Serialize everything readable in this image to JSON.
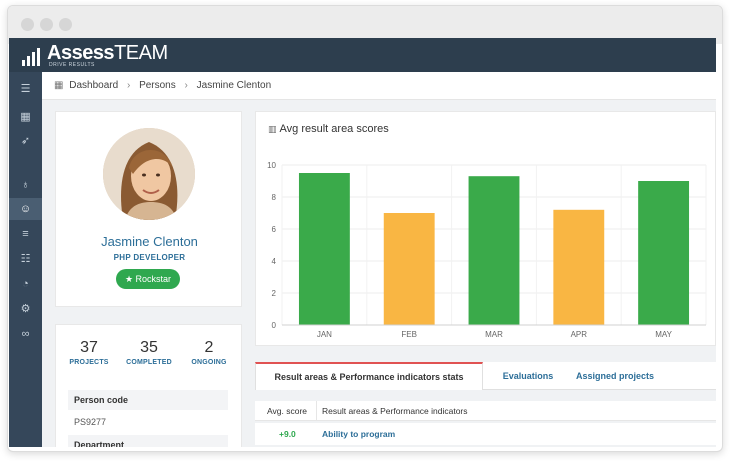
{
  "app": {
    "logo_main": "Assess",
    "logo_accent": "TEAM",
    "logo_tagline": "DRIVE RESULTS"
  },
  "breadcrumb": {
    "items": [
      "Dashboard",
      "Persons",
      "Jasmine Clenton"
    ]
  },
  "profile": {
    "name": "Jasmine Clenton",
    "role": "PHP DEVELOPER",
    "badge": "Rockstar"
  },
  "stats": [
    {
      "value": "37",
      "label": "PROJECTS"
    },
    {
      "value": "35",
      "label": "COMPLETED"
    },
    {
      "value": "2",
      "label": "ONGOING"
    }
  ],
  "details": [
    {
      "label": "Person code",
      "value": "PS9277"
    },
    {
      "label": "Department",
      "value": ""
    }
  ],
  "chart_data": {
    "type": "bar",
    "title": "Avg result area scores",
    "categories": [
      "JAN",
      "FEB",
      "MAR",
      "APR",
      "MAY"
    ],
    "values": [
      9.5,
      7.0,
      9.3,
      7.2,
      9.0
    ],
    "colors": [
      "#3aaa4a",
      "#f9b643",
      "#3aaa4a",
      "#f9b643",
      "#3aaa4a"
    ],
    "ylim": [
      0,
      10
    ],
    "yticks": [
      0,
      2,
      4,
      6,
      8,
      10
    ],
    "grid": true,
    "xlabel": "",
    "ylabel": ""
  },
  "tabs": [
    {
      "label": "Result areas & Performance indicators stats",
      "active": true
    },
    {
      "label": "Evaluations",
      "active": false
    },
    {
      "label": "Assigned projects",
      "active": false
    }
  ],
  "table": {
    "headers": [
      "Avg. score",
      "Result areas & Performance indicators"
    ],
    "rows": [
      {
        "score": "+9.0",
        "area": "Ability to program"
      }
    ]
  },
  "colors": {
    "appbar": "#2d3e4e",
    "sidebar": "#35475a",
    "accent_blue": "#2c6e98",
    "green": "#2fa84f",
    "orange": "#f9b643",
    "tab_active_border": "#e05252"
  },
  "icons": {
    "sidebar": [
      "menu-icon",
      "grid-icon",
      "rocket-icon",
      "thumbs-up-icon",
      "user-icon",
      "sliders-icon",
      "list-icon",
      "gauge-icon",
      "gear-icon",
      "link-icon"
    ]
  }
}
